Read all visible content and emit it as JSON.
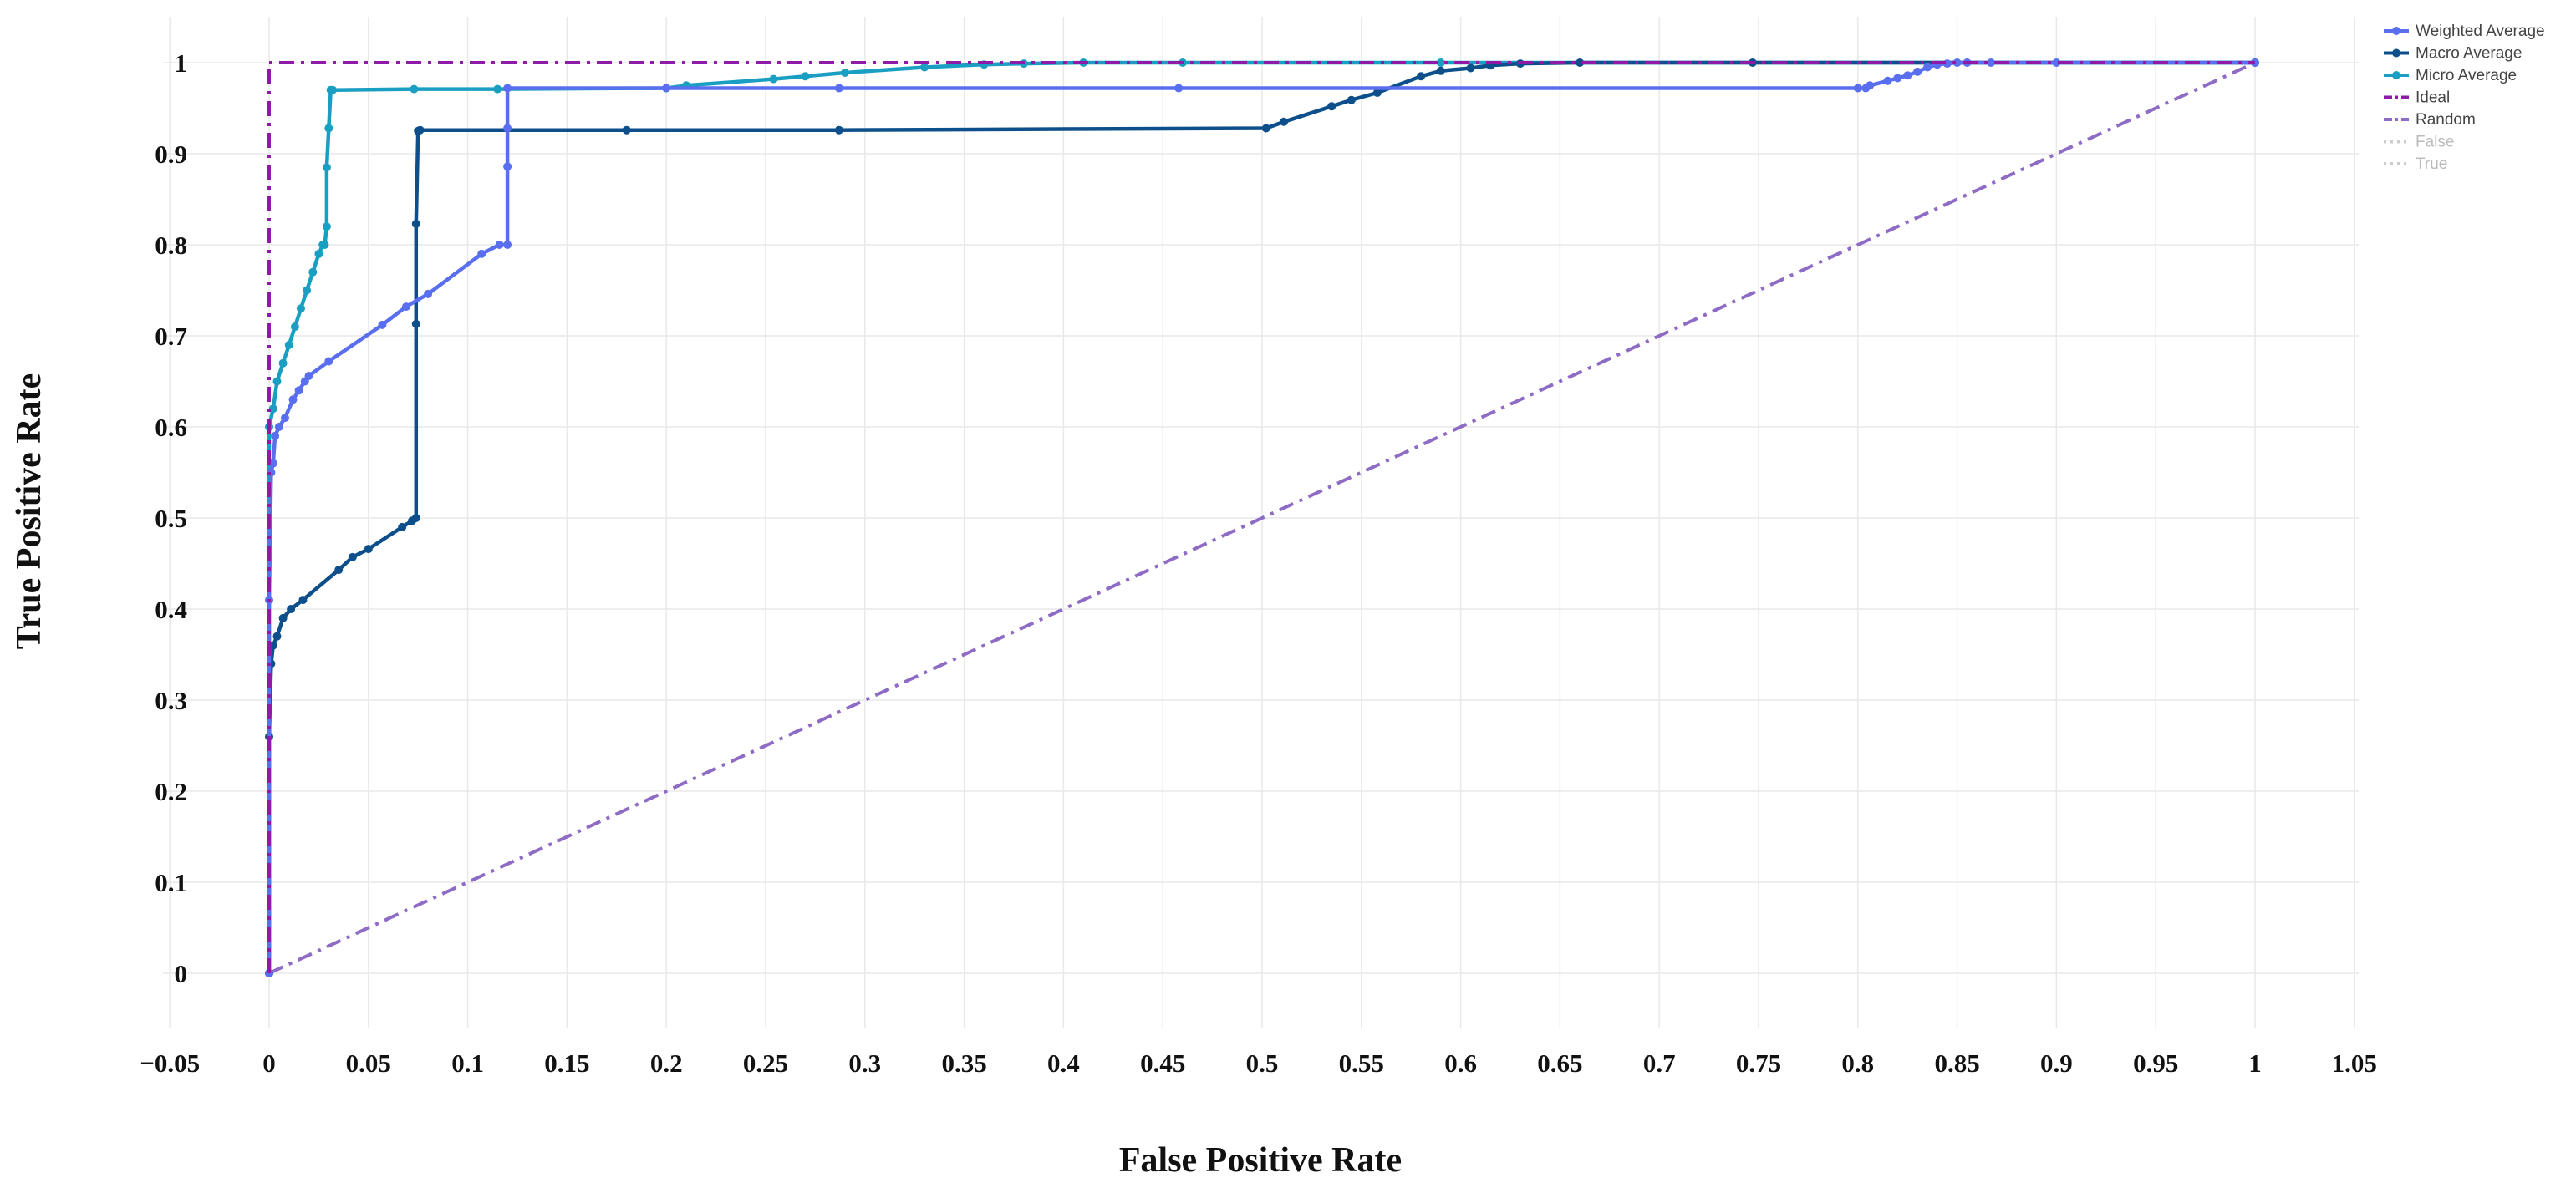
{
  "chart_data": {
    "type": "line",
    "title": "",
    "xlabel": "False Positive Rate",
    "ylabel": "True Positive Rate",
    "xlim": [
      -0.05,
      1.05
    ],
    "ylim": [
      -0.06,
      1.05
    ],
    "x_ticks": [
      "−0.05",
      "0",
      "0.05",
      "0.1",
      "0.15",
      "0.2",
      "0.25",
      "0.3",
      "0.35",
      "0.4",
      "0.45",
      "0.5",
      "0.55",
      "0.6",
      "0.65",
      "0.7",
      "0.75",
      "0.8",
      "0.85",
      "0.9",
      "0.95",
      "1",
      "1.05"
    ],
    "x_tick_values": [
      -0.05,
      0,
      0.05,
      0.1,
      0.15,
      0.2,
      0.25,
      0.3,
      0.35,
      0.4,
      0.45,
      0.5,
      0.55,
      0.6,
      0.65,
      0.7,
      0.75,
      0.8,
      0.85,
      0.9,
      0.95,
      1,
      1.05
    ],
    "y_ticks": [
      "0",
      "0.1",
      "0.2",
      "0.3",
      "0.4",
      "0.5",
      "0.6",
      "0.7",
      "0.8",
      "0.9",
      "1"
    ],
    "y_tick_values": [
      0,
      0.1,
      0.2,
      0.3,
      0.4,
      0.5,
      0.6,
      0.7,
      0.8,
      0.9,
      1
    ],
    "grid": true,
    "legend_position": "top-right",
    "series": [
      {
        "name": "Weighted Average",
        "color": "#5a6ff0",
        "style": "solid-markers",
        "x": [
          0,
          0,
          0.001,
          0.002,
          0.003,
          0.005,
          0.008,
          0.012,
          0.015,
          0.018,
          0.02,
          0.03,
          0.057,
          0.069,
          0.08,
          0.107,
          0.116,
          0.12,
          0.12,
          0.12,
          0.12,
          0.2,
          0.287,
          0.458,
          0.8,
          0.804,
          0.806,
          0.815,
          0.82,
          0.825,
          0.83,
          0.835,
          0.84,
          0.845,
          0.85,
          0.855,
          0.867,
          0.9,
          1
        ],
        "y": [
          0,
          0.41,
          0.55,
          0.56,
          0.59,
          0.6,
          0.61,
          0.63,
          0.64,
          0.65,
          0.656,
          0.672,
          0.712,
          0.732,
          0.746,
          0.79,
          0.8,
          0.8,
          0.886,
          0.928,
          0.972,
          0.972,
          0.972,
          0.972,
          0.972,
          0.972,
          0.975,
          0.98,
          0.983,
          0.986,
          0.99,
          0.995,
          0.998,
          0.999,
          1,
          1,
          1,
          1,
          1
        ]
      },
      {
        "name": "Macro Average",
        "color": "#0d4f8b",
        "style": "solid-markers",
        "x": [
          0,
          0,
          0.001,
          0.002,
          0.004,
          0.007,
          0.011,
          0.017,
          0.035,
          0.042,
          0.05,
          0.067,
          0.072,
          0.074,
          0.074,
          0.074,
          0.075,
          0.076,
          0.18,
          0.287,
          0.502,
          0.511,
          0.535,
          0.545,
          0.558,
          0.58,
          0.59,
          0.605,
          0.615,
          0.63,
          0.66,
          0.747,
          1
        ],
        "y": [
          0,
          0.26,
          0.34,
          0.36,
          0.37,
          0.39,
          0.4,
          0.41,
          0.443,
          0.457,
          0.466,
          0.49,
          0.497,
          0.5,
          0.713,
          0.823,
          0.925,
          0.926,
          0.926,
          0.926,
          0.928,
          0.935,
          0.952,
          0.959,
          0.967,
          0.985,
          0.991,
          0.994,
          0.997,
          0.999,
          1,
          1,
          1
        ]
      },
      {
        "name": "Micro Average",
        "color": "#1a9fc3",
        "style": "solid-markers",
        "x": [
          0,
          0,
          0.002,
          0.004,
          0.007,
          0.01,
          0.013,
          0.016,
          0.019,
          0.022,
          0.025,
          0.027,
          0.028,
          0.029,
          0.029,
          0.03,
          0.031,
          0.032,
          0.073,
          0.115,
          0.2,
          0.21,
          0.254,
          0.27,
          0.29,
          0.33,
          0.36,
          0.38,
          0.41,
          0.46,
          0.59,
          1
        ],
        "y": [
          0,
          0.6,
          0.62,
          0.65,
          0.67,
          0.69,
          0.71,
          0.73,
          0.75,
          0.77,
          0.79,
          0.8,
          0.8,
          0.82,
          0.885,
          0.928,
          0.97,
          0.97,
          0.971,
          0.971,
          0.972,
          0.975,
          0.982,
          0.985,
          0.989,
          0.995,
          0.998,
          0.999,
          1,
          1,
          1,
          1
        ]
      },
      {
        "name": "Ideal",
        "color": "#8e1aa8",
        "style": "dashdot",
        "x": [
          0,
          0,
          1
        ],
        "y": [
          0,
          1,
          1
        ]
      },
      {
        "name": "Random",
        "color": "#8e6bc4",
        "style": "dashdot",
        "x": [
          0,
          1
        ],
        "y": [
          0,
          1
        ]
      }
    ],
    "legend": [
      {
        "name": "Weighted Average",
        "color": "#5a6ff0",
        "style": "solid-markers"
      },
      {
        "name": "Macro Average",
        "color": "#0d4f8b",
        "style": "solid-markers"
      },
      {
        "name": "Micro Average",
        "color": "#1a9fc3",
        "style": "solid-markers"
      },
      {
        "name": "Ideal",
        "color": "#8e1aa8",
        "style": "dashdot"
      },
      {
        "name": "Random",
        "color": "#8e6bc4",
        "style": "dashdot"
      },
      {
        "name": "False",
        "color": "#cccccc",
        "style": "dotted",
        "dimmed": true
      },
      {
        "name": "True",
        "color": "#cccccc",
        "style": "dotted",
        "dimmed": true
      }
    ]
  }
}
